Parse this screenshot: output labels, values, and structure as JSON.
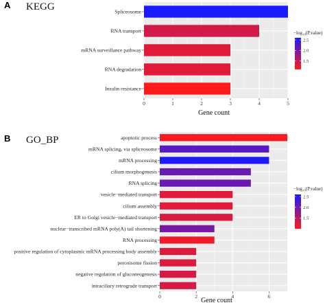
{
  "chart_data": [
    {
      "type": "bar",
      "orientation": "horizontal",
      "panel_label": "A",
      "title": "KEGG",
      "xlabel": "Gene count",
      "xlim": [
        0,
        5
      ],
      "xticks": [
        0,
        1,
        2,
        3,
        4,
        5
      ],
      "grid": true,
      "legend_position": "right",
      "categories": [
        "Spliceosome",
        "RNA transport",
        "mRNA surveillance pathway",
        "RNA degradation",
        "Insulin resistance"
      ],
      "values": [
        5,
        4,
        3,
        3,
        3
      ],
      "color_values": [
        2.6,
        1.4,
        1.3,
        1.3,
        1.1
      ],
      "colorbar": {
        "title": "−log₁₀(P.value)",
        "ticks": [
          1.5,
          2.0,
          2.5
        ],
        "range": [
          1.1,
          2.6
        ],
        "low_color": "#ff1a1a",
        "high_color": "#1a1aff"
      }
    },
    {
      "type": "bar",
      "orientation": "horizontal",
      "panel_label": "B",
      "title": "GO_BP",
      "xlabel": "Gene count",
      "xlim": [
        0,
        7
      ],
      "xticks": [
        0,
        2,
        4,
        6
      ],
      "grid": true,
      "legend_position": "right",
      "categories": [
        "apoptotic process",
        "mRNA splicing, via spliceosome",
        "mRNA processing",
        "cilium morphogenesis",
        "RNA splicing",
        "vesicle−mediated transport",
        "cilium assembly",
        "ER to Golgi vesicle−mediated transport",
        "nuclear−transcribed mRNA poly(A) tail shortening",
        "RNA processing",
        "positive regulation of cytoplasmic mRNA processing body assembly",
        "peroxisome fission",
        "negative regulation of gluconeogenesis",
        "intraciliary retrograde transport"
      ],
      "values": [
        7,
        6,
        6,
        5,
        5,
        4,
        4,
        4,
        3,
        3,
        2,
        2,
        2,
        2
      ],
      "color_values": [
        1.05,
        2.15,
        2.55,
        2.05,
        2.05,
        1.2,
        1.2,
        1.25,
        1.95,
        1.1,
        1.25,
        1.25,
        1.3,
        1.3
      ],
      "colorbar": {
        "title": "−log₁₀(P.value)",
        "ticks": [
          1.5,
          2.0,
          2.5
        ],
        "range": [
          1.0,
          2.6
        ],
        "low_color": "#ff1a1a",
        "high_color": "#1a1aff"
      }
    }
  ]
}
